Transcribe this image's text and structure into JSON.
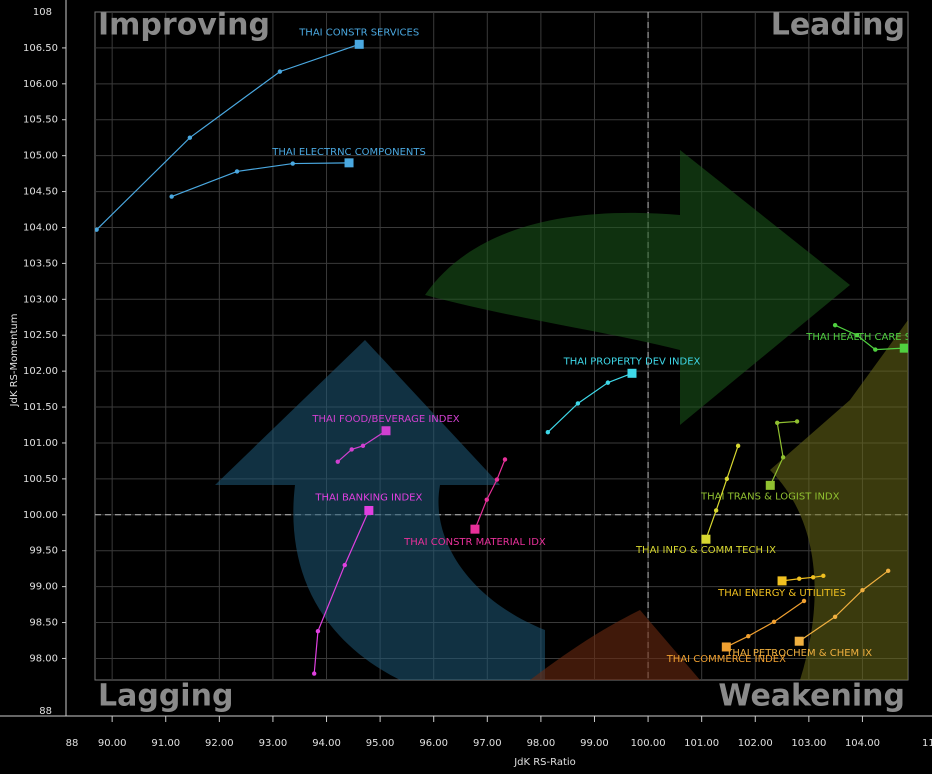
{
  "chart_data": {
    "type": "line",
    "xlabel": "JdK RS-Ratio",
    "ylabel": "JdK RS-Momentum",
    "quadrants": {
      "top_left": "Improving",
      "top_right": "Leading",
      "bottom_left": "Lagging",
      "bottom_right": "Weakening"
    },
    "y_break_labels": [
      "108",
      "88"
    ],
    "x_break_labels": [
      "88",
      "11"
    ],
    "xlim": [
      89.68,
      104.85
    ],
    "ylim": [
      97.7,
      107.0
    ],
    "center": [
      100,
      100
    ],
    "grid": true,
    "xticks": [
      {
        "value": 90,
        "label": "90.00"
      },
      {
        "value": 91,
        "label": "91.00"
      },
      {
        "value": 92,
        "label": "92.00"
      },
      {
        "value": 93,
        "label": "93.00"
      },
      {
        "value": 94,
        "label": "94.00"
      },
      {
        "value": 95,
        "label": "95.00"
      },
      {
        "value": 96,
        "label": "96.00"
      },
      {
        "value": 97,
        "label": "97.00"
      },
      {
        "value": 98,
        "label": "98.00"
      },
      {
        "value": 99,
        "label": "99.00"
      },
      {
        "value": 100,
        "label": "100.00"
      },
      {
        "value": 101,
        "label": "101.00"
      },
      {
        "value": 102,
        "label": "102.00"
      },
      {
        "value": 103,
        "label": "103.00"
      },
      {
        "value": 104,
        "label": "104.00"
      }
    ],
    "yticks": [
      {
        "value": 98,
        "label": "98.00"
      },
      {
        "value": 98.5,
        "label": "98.50"
      },
      {
        "value": 99,
        "label": "99.00"
      },
      {
        "value": 99.5,
        "label": "99.50"
      },
      {
        "value": 100,
        "label": "100.00"
      },
      {
        "value": 100.5,
        "label": "100.50"
      },
      {
        "value": 101,
        "label": "101.00"
      },
      {
        "value": 101.5,
        "label": "101.50"
      },
      {
        "value": 102,
        "label": "102.00"
      },
      {
        "value": 102.5,
        "label": "102.50"
      },
      {
        "value": 103,
        "label": "103.00"
      },
      {
        "value": 103.5,
        "label": "103.50"
      },
      {
        "value": 104,
        "label": "104.00"
      },
      {
        "value": 104.5,
        "label": "104.50"
      },
      {
        "value": 105,
        "label": "105.00"
      },
      {
        "value": 105.5,
        "label": "105.50"
      },
      {
        "value": 106,
        "label": "106.00"
      },
      {
        "value": 106.5,
        "label": "106.50"
      }
    ],
    "series": [
      {
        "name": "THAI CONSTR SERVICES",
        "color": "#4aa8e0",
        "x": [
          89.71,
          91.45,
          93.13,
          94.61
        ],
        "values": [
          103.97,
          105.25,
          106.17,
          106.55
        ]
      },
      {
        "name": "THAI ELECTRNC COMPONENTS",
        "color": "#4aa8e0",
        "x": [
          91.11,
          92.33,
          93.37,
          94.42
        ],
        "values": [
          104.43,
          104.78,
          104.89,
          104.9
        ]
      },
      {
        "name": "THAI PROPERTY DEV INDEX",
        "color": "#3ed8e8",
        "x": [
          98.13,
          98.69,
          99.25,
          99.7
        ],
        "values": [
          101.15,
          101.55,
          101.84,
          101.97
        ]
      },
      {
        "name": "THAI FOOD/BEVERAGE INDEX",
        "color": "#d040d0",
        "x": [
          94.21,
          94.47,
          94.68,
          95.11
        ],
        "values": [
          100.74,
          100.91,
          100.96,
          101.17
        ]
      },
      {
        "name": "THAI BANKING INDEX",
        "color": "#e040e0",
        "x": [
          93.77,
          93.84,
          94.34,
          94.79
        ],
        "values": [
          97.79,
          98.38,
          99.3,
          100.06
        ]
      },
      {
        "name": "THAI CONSTR MATERIAL IDX",
        "color": "#e8309a",
        "x": [
          97.33,
          97.18,
          96.99,
          96.77
        ],
        "values": [
          100.77,
          100.49,
          100.21,
          99.8
        ]
      },
      {
        "name": "THAI HEALTH CARE SERVIC",
        "color": "#50d040",
        "x": [
          103.49,
          103.9,
          104.24,
          104.78
        ],
        "values": [
          102.64,
          102.5,
          102.3,
          102.32
        ]
      },
      {
        "name": "THAI TRANS & LOGIST INDX",
        "color": "#90c030",
        "x": [
          102.78,
          102.41,
          102.52,
          102.28
        ],
        "values": [
          101.3,
          101.28,
          100.8,
          100.41
        ]
      },
      {
        "name": "THAI INFO & COMM TECH IX",
        "color": "#d8d830",
        "x": [
          101.68,
          101.47,
          101.27,
          101.08
        ],
        "values": [
          100.96,
          100.5,
          100.06,
          99.66
        ]
      },
      {
        "name": "THAI ENERGY & UTILITIES",
        "color": "#f0c020",
        "x": [
          103.27,
          103.08,
          102.82,
          102.5
        ],
        "values": [
          99.15,
          99.13,
          99.11,
          99.08
        ]
      },
      {
        "name": "THAI PETROCHEM & CHEM IX",
        "color": "#f0b040",
        "x": [
          104.48,
          104.0,
          103.49,
          102.82
        ],
        "values": [
          99.22,
          98.95,
          98.58,
          98.24
        ]
      },
      {
        "name": "THAI COMMERCE INDEX",
        "color": "#f0a030",
        "x": [
          102.91,
          102.35,
          101.87,
          101.46
        ],
        "values": [
          98.8,
          98.51,
          98.31,
          98.16
        ]
      }
    ]
  }
}
